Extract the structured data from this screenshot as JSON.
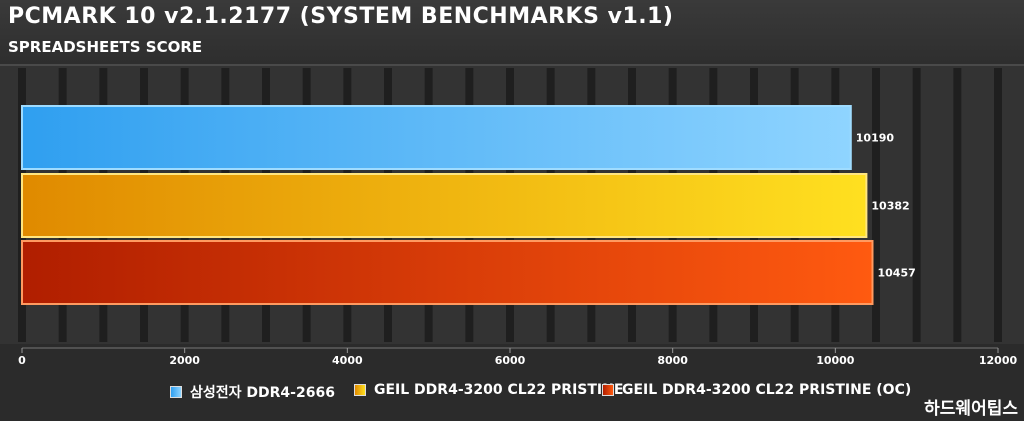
{
  "chart_data": {
    "type": "bar",
    "orientation": "horizontal",
    "title": "PCMARK 10 v2.1.2177 (SYSTEM BENCHMARKS v1.1)",
    "subtitle": "SPREADSHEETS SCORE",
    "categories": [
      "삼성전자 DDR4-2666",
      "GEIL DDR4-3200 CL22 PRISTINE",
      "GEIL DDR4-3200 CL22 PRISTINE (OC)"
    ],
    "values": [
      10190,
      10382,
      10457
    ],
    "xlim": [
      0,
      12000
    ],
    "xticks": [
      "0",
      "2000",
      "4000",
      "6000",
      "8000",
      "10000",
      "12000"
    ],
    "grid": "vertical",
    "legend_position": "bottom",
    "colors": [
      {
        "start": "#2f9ff0",
        "end": "#8fd4ff",
        "border": "#9fdcff"
      },
      {
        "start": "#e08a00",
        "end": "#ffe020",
        "border": "#ffe680"
      },
      {
        "start": "#b01e00",
        "end": "#ff5a10",
        "border": "#ff9a60"
      }
    ]
  },
  "watermark": "하드웨어팁스",
  "theme": {
    "background": "#2b2b2b",
    "grid_color": "#1c1c1c",
    "text_color": "#ffffff"
  }
}
